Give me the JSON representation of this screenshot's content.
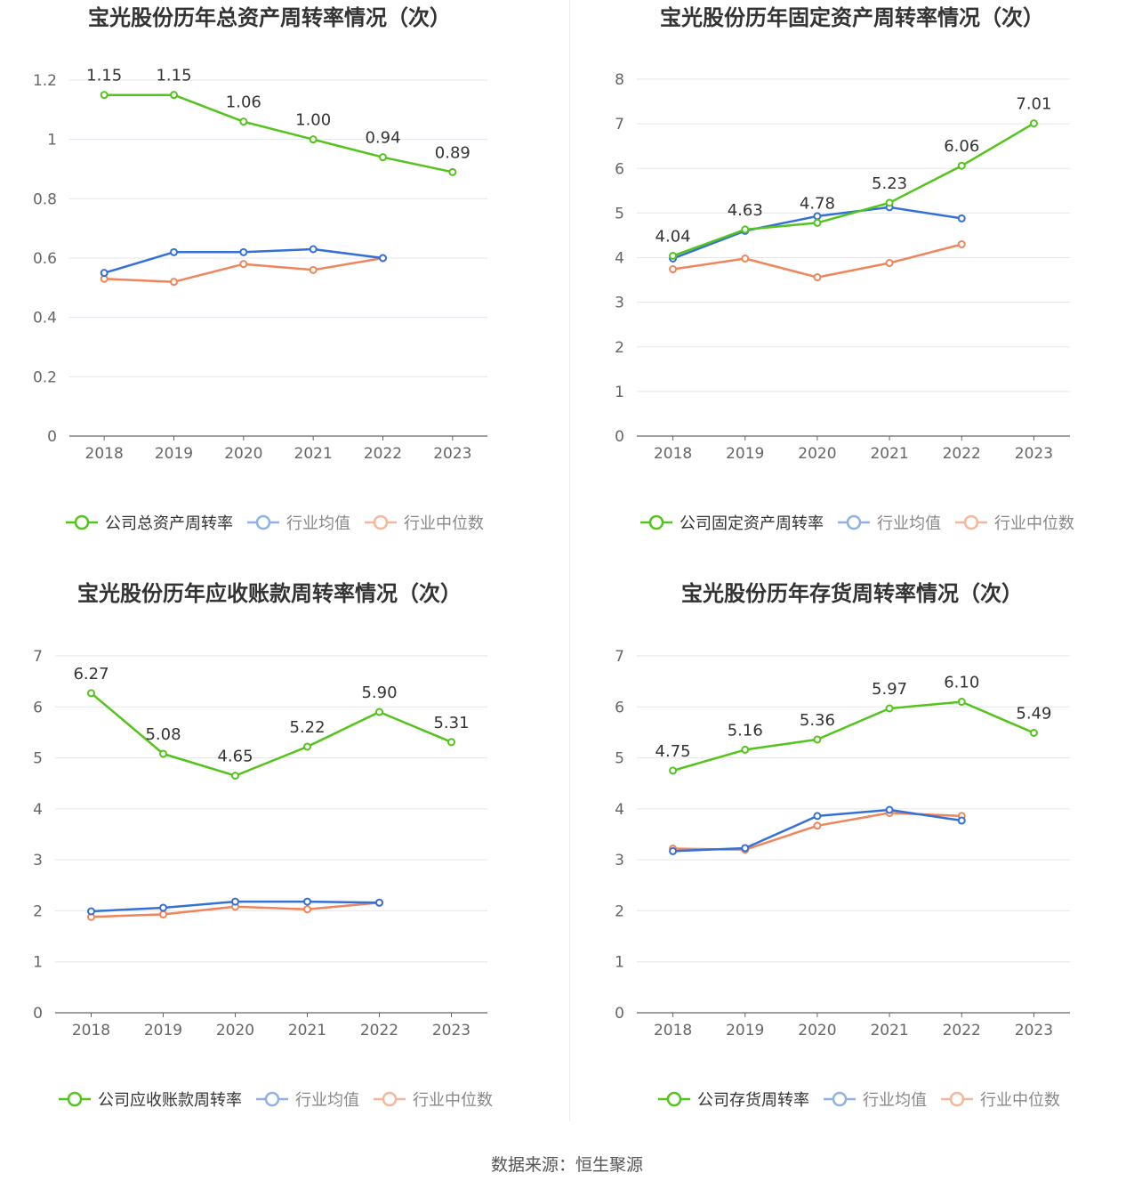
{
  "colors": {
    "company": "#52c41a",
    "avg": "#3470d8",
    "median": "#f0845a",
    "avg_legend": "#8fb1ea",
    "median_legend": "#f5b69a",
    "grid": "#e3e6ee",
    "axis": "#666666",
    "tick": "#666666",
    "label": "#333333"
  },
  "source_text": "数据来源：恒生聚源",
  "chart_data": [
    {
      "type": "line",
      "title": "宝光股份历年总资产周转率情况（次）",
      "x": [
        "2018",
        "2019",
        "2020",
        "2021",
        "2022",
        "2023"
      ],
      "ylim": [
        0,
        1.2
      ],
      "yticks": [
        "0",
        "0.2",
        "0.4",
        "0.6",
        "0.8",
        "1",
        "1.2"
      ],
      "grid": true,
      "legend": "bottom",
      "series": [
        {
          "name": "公司总资产周转率",
          "role": "company",
          "values": [
            1.15,
            1.15,
            1.06,
            1.0,
            0.94,
            0.89
          ],
          "labels": [
            "1.15",
            "1.15",
            "1.06",
            "1.00",
            "0.94",
            "0.89"
          ]
        },
        {
          "name": "行业均值",
          "role": "avg",
          "values": [
            0.55,
            0.62,
            0.62,
            0.63,
            0.6,
            null
          ]
        },
        {
          "name": "行业中位数",
          "role": "median",
          "values": [
            0.53,
            0.52,
            0.58,
            0.56,
            0.6,
            null
          ]
        }
      ]
    },
    {
      "type": "line",
      "title": "宝光股份历年固定资产周转率情况（次）",
      "x": [
        "2018",
        "2019",
        "2020",
        "2021",
        "2022",
        "2023"
      ],
      "ylim": [
        0,
        8
      ],
      "yticks": [
        "0",
        "1",
        "2",
        "3",
        "4",
        "5",
        "6",
        "7",
        "8"
      ],
      "grid": true,
      "legend": "bottom",
      "series": [
        {
          "name": "公司固定资产周转率",
          "role": "company",
          "values": [
            4.04,
            4.63,
            4.78,
            5.23,
            6.06,
            7.01
          ],
          "labels": [
            "4.04",
            "4.63",
            "4.78",
            "5.23",
            "6.06",
            "7.01"
          ]
        },
        {
          "name": "行业均值",
          "role": "avg",
          "values": [
            3.98,
            4.6,
            4.93,
            5.13,
            4.88,
            null
          ]
        },
        {
          "name": "行业中位数",
          "role": "median",
          "values": [
            3.74,
            3.98,
            3.56,
            3.88,
            4.3,
            null
          ]
        }
      ]
    },
    {
      "type": "line",
      "title": "宝光股份历年应收账款周转率情况（次）",
      "x": [
        "2018",
        "2019",
        "2020",
        "2021",
        "2022",
        "2023"
      ],
      "ylim": [
        0,
        7
      ],
      "yticks": [
        "0",
        "1",
        "2",
        "3",
        "4",
        "5",
        "6",
        "7"
      ],
      "grid": true,
      "legend": "bottom",
      "series": [
        {
          "name": "公司应收账款周转率",
          "role": "company",
          "values": [
            6.27,
            5.08,
            4.65,
            5.22,
            5.9,
            5.31
          ],
          "labels": [
            "6.27",
            "5.08",
            "4.65",
            "5.22",
            "5.90",
            "5.31"
          ]
        },
        {
          "name": "行业均值",
          "role": "avg",
          "values": [
            1.99,
            2.06,
            2.18,
            2.18,
            2.16,
            null
          ]
        },
        {
          "name": "行业中位数",
          "role": "median",
          "values": [
            1.88,
            1.93,
            2.08,
            2.03,
            2.16,
            null
          ]
        }
      ]
    },
    {
      "type": "line",
      "title": "宝光股份历年存货周转率情况（次）",
      "x": [
        "2018",
        "2019",
        "2020",
        "2021",
        "2022",
        "2023"
      ],
      "ylim": [
        0,
        7
      ],
      "yticks": [
        "0",
        "1",
        "2",
        "3",
        "4",
        "5",
        "6",
        "7"
      ],
      "grid": true,
      "legend": "bottom",
      "series": [
        {
          "name": "公司存货周转率",
          "role": "company",
          "values": [
            4.75,
            5.16,
            5.36,
            5.97,
            6.1,
            5.49
          ],
          "labels": [
            "4.75",
            "5.16",
            "5.36",
            "5.97",
            "6.10",
            "5.49"
          ]
        },
        {
          "name": "行业均值",
          "role": "avg",
          "values": [
            3.17,
            3.23,
            3.86,
            3.98,
            3.77,
            null
          ]
        },
        {
          "name": "行业中位数",
          "role": "median",
          "values": [
            3.22,
            3.2,
            3.67,
            3.92,
            3.86,
            null
          ]
        }
      ]
    }
  ]
}
